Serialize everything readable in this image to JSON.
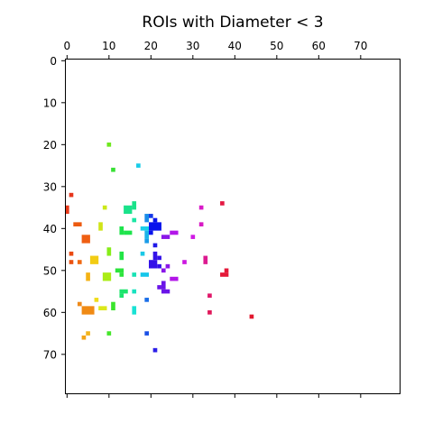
{
  "chart_data": {
    "type": "heatmap",
    "subtype": "labeled ROI image",
    "title": "ROIs with Diameter < 3",
    "xlabel": "",
    "ylabel": "",
    "xlim": [
      -0.5,
      79.5
    ],
    "ylim": [
      79.5,
      -0.5
    ],
    "x_axis_position": "top",
    "grid": false,
    "xticks": [
      0,
      10,
      20,
      30,
      40,
      50,
      60,
      70
    ],
    "yticks": [
      0,
      10,
      20,
      30,
      40,
      50,
      60,
      70
    ],
    "x_tick_labels": [
      "0",
      "10",
      "20",
      "30",
      "40",
      "50",
      "60",
      "70"
    ],
    "y_tick_labels": [
      "0",
      "10",
      "20",
      "30",
      "40",
      "50",
      "60",
      "70"
    ],
    "cells": [
      {
        "x": 0,
        "y": 35,
        "w": 1,
        "h": 2,
        "color": "#e83a1a"
      },
      {
        "x": 1,
        "y": 32,
        "w": 1,
        "h": 1,
        "color": "#e6361c"
      },
      {
        "x": 1,
        "y": 46,
        "w": 1,
        "h": 1,
        "color": "#ea4a12"
      },
      {
        "x": 1,
        "y": 48,
        "w": 1,
        "h": 1,
        "color": "#ea5212"
      },
      {
        "x": 2,
        "y": 39,
        "w": 2,
        "h": 1,
        "color": "#ec5a10"
      },
      {
        "x": 3,
        "y": 48,
        "w": 1,
        "h": 1,
        "color": "#f06812"
      },
      {
        "x": 4,
        "y": 42,
        "w": 2,
        "h": 2,
        "color": "#ef5f12"
      },
      {
        "x": 3,
        "y": 58,
        "w": 1,
        "h": 1,
        "color": "#ee8a1a"
      },
      {
        "x": 4,
        "y": 59,
        "w": 3,
        "h": 2,
        "color": "#f08a14"
      },
      {
        "x": 4,
        "y": 66,
        "w": 1,
        "h": 1,
        "color": "#f2a418"
      },
      {
        "x": 5,
        "y": 65,
        "w": 1,
        "h": 1,
        "color": "#f2b41c"
      },
      {
        "x": 5,
        "y": 51,
        "w": 1,
        "h": 2,
        "color": "#f4b214"
      },
      {
        "x": 6,
        "y": 47,
        "w": 2,
        "h": 2,
        "color": "#f2cc14"
      },
      {
        "x": 7,
        "y": 57,
        "w": 1,
        "h": 1,
        "color": "#f0dc1a"
      },
      {
        "x": 8,
        "y": 59,
        "w": 2,
        "h": 1,
        "color": "#dce81a"
      },
      {
        "x": 8,
        "y": 39,
        "w": 1,
        "h": 2,
        "color": "#d0e418"
      },
      {
        "x": 9,
        "y": 35,
        "w": 1,
        "h": 1,
        "color": "#cce818"
      },
      {
        "x": 9,
        "y": 51,
        "w": 2,
        "h": 2,
        "color": "#aaec16"
      },
      {
        "x": 10,
        "y": 45,
        "w": 1,
        "h": 2,
        "color": "#86ec18"
      },
      {
        "x": 10,
        "y": 20,
        "w": 1,
        "h": 1,
        "color": "#6ee81e"
      },
      {
        "x": 10,
        "y": 65,
        "w": 1,
        "h": 1,
        "color": "#44e62a"
      },
      {
        "x": 11,
        "y": 58,
        "w": 1,
        "h": 2,
        "color": "#3ae42c"
      },
      {
        "x": 11,
        "y": 26,
        "w": 1,
        "h": 1,
        "color": "#38e034"
      },
      {
        "x": 12,
        "y": 50,
        "w": 2,
        "h": 1,
        "color": "#2ce43c"
      },
      {
        "x": 13,
        "y": 51,
        "w": 1,
        "h": 1,
        "color": "#2ce43c"
      },
      {
        "x": 13,
        "y": 46,
        "w": 1,
        "h": 2,
        "color": "#22e446"
      },
      {
        "x": 13,
        "y": 40,
        "w": 1,
        "h": 2,
        "color": "#1ee44c"
      },
      {
        "x": 14,
        "y": 41,
        "w": 2,
        "h": 1,
        "color": "#1ee44c"
      },
      {
        "x": 13,
        "y": 55,
        "w": 2,
        "h": 1,
        "color": "#1ce46c"
      },
      {
        "x": 13,
        "y": 56,
        "w": 1,
        "h": 1,
        "color": "#1ce46c"
      },
      {
        "x": 14,
        "y": 35,
        "w": 2,
        "h": 2,
        "color": "#1ae28a"
      },
      {
        "x": 16,
        "y": 34,
        "w": 1,
        "h": 2,
        "color": "#1ae28a"
      },
      {
        "x": 16,
        "y": 38,
        "w": 1,
        "h": 1,
        "color": "#1ce6a4"
      },
      {
        "x": 16,
        "y": 51,
        "w": 1,
        "h": 1,
        "color": "#18e2b4"
      },
      {
        "x": 16,
        "y": 55,
        "w": 1,
        "h": 1,
        "color": "#18e2c0"
      },
      {
        "x": 16,
        "y": 59,
        "w": 1,
        "h": 2,
        "color": "#18e2d4"
      },
      {
        "x": 17,
        "y": 25,
        "w": 1,
        "h": 1,
        "color": "#18cce8"
      },
      {
        "x": 18,
        "y": 46,
        "w": 1,
        "h": 1,
        "color": "#1ac8e6"
      },
      {
        "x": 18,
        "y": 40,
        "w": 2,
        "h": 1,
        "color": "#1acee8"
      },
      {
        "x": 19,
        "y": 41,
        "w": 1,
        "h": 2,
        "color": "#1ab4e8"
      },
      {
        "x": 18,
        "y": 51,
        "w": 2,
        "h": 1,
        "color": "#16c6ea"
      },
      {
        "x": 19,
        "y": 37,
        "w": 1,
        "h": 2,
        "color": "#1a8ce8"
      },
      {
        "x": 19,
        "y": 43,
        "w": 1,
        "h": 1,
        "color": "#1a9ce8"
      },
      {
        "x": 19,
        "y": 57,
        "w": 1,
        "h": 1,
        "color": "#1a6ee8"
      },
      {
        "x": 19,
        "y": 65,
        "w": 1,
        "h": 1,
        "color": "#1a50e6"
      },
      {
        "x": 20,
        "y": 37,
        "w": 1,
        "h": 1,
        "color": "#1438e8"
      },
      {
        "x": 20,
        "y": 39,
        "w": 3,
        "h": 2,
        "color": "#0a14ec"
      },
      {
        "x": 21,
        "y": 38,
        "w": 1,
        "h": 1,
        "color": "#0a14ec"
      },
      {
        "x": 20,
        "y": 41,
        "w": 1,
        "h": 1,
        "color": "#0a14ec"
      },
      {
        "x": 21,
        "y": 44,
        "w": 1,
        "h": 1,
        "color": "#2018e8"
      },
      {
        "x": 20,
        "y": 48,
        "w": 2,
        "h": 2,
        "color": "#3412e8"
      },
      {
        "x": 21,
        "y": 46,
        "w": 1,
        "h": 2,
        "color": "#3412e8"
      },
      {
        "x": 22,
        "y": 47,
        "w": 1,
        "h": 1,
        "color": "#3412e8"
      },
      {
        "x": 22,
        "y": 49,
        "w": 1,
        "h": 1,
        "color": "#3412e8"
      },
      {
        "x": 21,
        "y": 69,
        "w": 1,
        "h": 1,
        "color": "#2c1ee8"
      },
      {
        "x": 22,
        "y": 54,
        "w": 1,
        "h": 1,
        "color": "#6a14e8"
      },
      {
        "x": 23,
        "y": 53,
        "w": 1,
        "h": 2,
        "color": "#6a14e8"
      },
      {
        "x": 23,
        "y": 55,
        "w": 2,
        "h": 1,
        "color": "#6a14e8"
      },
      {
        "x": 23,
        "y": 42,
        "w": 2,
        "h": 1,
        "color": "#8a16e8"
      },
      {
        "x": 23,
        "y": 50,
        "w": 1,
        "h": 1,
        "color": "#8a16e8"
      },
      {
        "x": 24,
        "y": 49,
        "w": 1,
        "h": 1,
        "color": "#8a16e8"
      },
      {
        "x": 25,
        "y": 41,
        "w": 2,
        "h": 1,
        "color": "#b216e8"
      },
      {
        "x": 25,
        "y": 52,
        "w": 2,
        "h": 1,
        "color": "#b216e8"
      },
      {
        "x": 28,
        "y": 48,
        "w": 1,
        "h": 1,
        "color": "#cc18e0"
      },
      {
        "x": 30,
        "y": 42,
        "w": 1,
        "h": 1,
        "color": "#d01ae4"
      },
      {
        "x": 32,
        "y": 35,
        "w": 1,
        "h": 1,
        "color": "#d81ac8"
      },
      {
        "x": 32,
        "y": 39,
        "w": 1,
        "h": 1,
        "color": "#d81ac4"
      },
      {
        "x": 33,
        "y": 47,
        "w": 1,
        "h": 2,
        "color": "#dc1a90"
      },
      {
        "x": 34,
        "y": 56,
        "w": 1,
        "h": 1,
        "color": "#e0186a"
      },
      {
        "x": 34,
        "y": 60,
        "w": 1,
        "h": 1,
        "color": "#e0185a"
      },
      {
        "x": 37,
        "y": 34,
        "w": 1,
        "h": 1,
        "color": "#e41842"
      },
      {
        "x": 37,
        "y": 51,
        "w": 2,
        "h": 1,
        "color": "#e41838"
      },
      {
        "x": 38,
        "y": 50,
        "w": 1,
        "h": 1,
        "color": "#e41838"
      },
      {
        "x": 44,
        "y": 61,
        "w": 1,
        "h": 1,
        "color": "#e2182e"
      }
    ]
  }
}
